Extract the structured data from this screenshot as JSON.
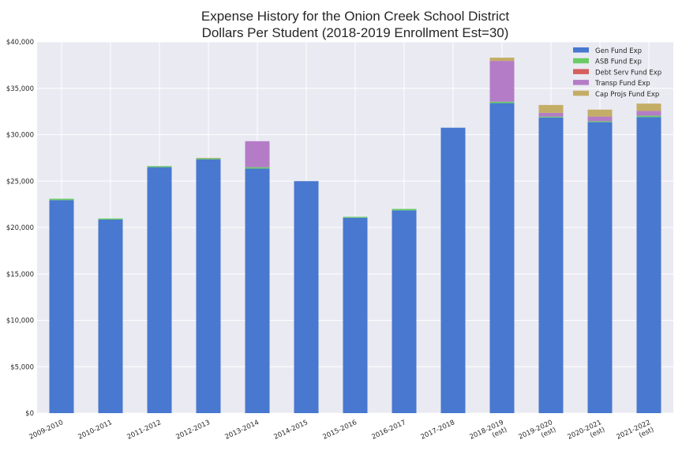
{
  "chart_data": {
    "type": "bar",
    "stacked": true,
    "title": "Expense History for the Onion Creek School District",
    "subtitle": "Dollars Per Student (2018-2019 Enrollment Est=30)",
    "xlabel": "",
    "ylabel": "",
    "ylim": [
      0,
      40000
    ],
    "yticks": [
      0,
      5000,
      10000,
      15000,
      20000,
      25000,
      30000,
      35000,
      40000
    ],
    "ytick_labels": [
      "$0",
      "$5,000",
      "$10,000",
      "$15,000",
      "$20,000",
      "$25,000",
      "$30,000",
      "$35,000",
      "$40,000"
    ],
    "grid": true,
    "legend_position": "top-right",
    "categories": [
      [
        "2009-2010"
      ],
      [
        "2010-2011"
      ],
      [
        "2011-2012"
      ],
      [
        "2012-2013"
      ],
      [
        "2013-2014"
      ],
      [
        "2014-2015"
      ],
      [
        "2015-2016"
      ],
      [
        "2016-2017"
      ],
      [
        "2017-2018"
      ],
      [
        "2018-2019",
        "(est)"
      ],
      [
        "2019-2020",
        "(est)"
      ],
      [
        "2020-2021",
        "(est)"
      ],
      [
        "2021-2022",
        "(est)"
      ]
    ],
    "series": [
      {
        "name": "Gen Fund Exp",
        "color": "#4878cf",
        "values": [
          22950,
          20850,
          26500,
          27350,
          26350,
          25000,
          21050,
          21850,
          30750,
          33400,
          31850,
          31350,
          31900
        ]
      },
      {
        "name": "ASB Fund Exp",
        "color": "#6acc65",
        "values": [
          150,
          120,
          120,
          100,
          150,
          0,
          100,
          150,
          0,
          150,
          100,
          100,
          150
        ]
      },
      {
        "name": "Debt Serv Fund Exp",
        "color": "#d65f5f",
        "values": [
          0,
          0,
          0,
          0,
          0,
          0,
          0,
          0,
          0,
          0,
          0,
          0,
          0
        ]
      },
      {
        "name": "Transp Fund Exp",
        "color": "#b47cc7",
        "values": [
          0,
          0,
          0,
          0,
          2800,
          0,
          0,
          0,
          0,
          4400,
          400,
          500,
          500
        ]
      },
      {
        "name": "Cap Projs Fund Exp",
        "color": "#c4ad66",
        "values": [
          0,
          0,
          0,
          50,
          0,
          0,
          0,
          0,
          0,
          350,
          850,
          750,
          800
        ]
      }
    ]
  }
}
